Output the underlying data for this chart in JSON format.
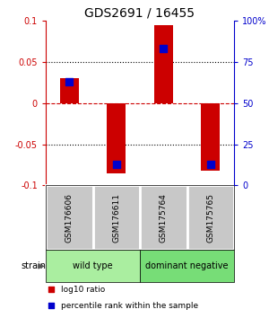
{
  "title": "GDS2691 / 16455",
  "samples": [
    "GSM176606",
    "GSM176611",
    "GSM175764",
    "GSM175765"
  ],
  "log10_ratio": [
    0.03,
    -0.085,
    0.095,
    -0.082
  ],
  "percentile_rank": [
    0.63,
    0.13,
    0.83,
    0.13
  ],
  "ylim": [
    -0.1,
    0.1
  ],
  "yticks_left": [
    -0.1,
    -0.05,
    0,
    0.05,
    0.1
  ],
  "yticks_right_labels": [
    "0",
    "25",
    "50",
    "75",
    "100%"
  ],
  "yticks_right_vals": [
    -0.1,
    -0.05,
    0.0,
    0.05,
    0.1
  ],
  "dotted_lines": [
    -0.05,
    0.05
  ],
  "zero_line": 0,
  "groups": [
    {
      "label": "wild type",
      "samples": [
        0,
        1
      ],
      "color": "#aaeea0"
    },
    {
      "label": "dominant negative",
      "samples": [
        2,
        3
      ],
      "color": "#77dd77"
    }
  ],
  "bar_color": "#cc0000",
  "dot_color": "#0000cc",
  "bar_width": 0.4,
  "dot_size": 30,
  "background_color": "#ffffff",
  "left_axis_color": "#cc0000",
  "right_axis_color": "#0000cc",
  "title_fontsize": 10,
  "tick_fontsize": 7,
  "sample_box_color": "#c8c8c8",
  "legend_red_label": "log10 ratio",
  "legend_blue_label": "percentile rank within the sample"
}
